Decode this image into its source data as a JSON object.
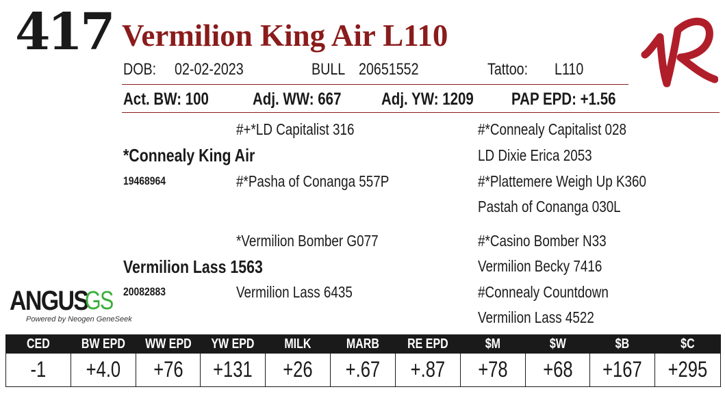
{
  "lot_number": "417",
  "animal_name": "Vermilion King Air L110",
  "details": {
    "dob_label": "DOB:",
    "dob_value": "02-02-2023",
    "sex": "BULL",
    "registration": "20651552",
    "tattoo_label": "Tattoo:",
    "tattoo_value": "L110"
  },
  "performance": {
    "act_bw": "Act. BW: 100",
    "adj_ww": "Adj. WW: 667",
    "adj_yw": "Adj. YW: 1209",
    "pap_epd": "PAP EPD: +1.56"
  },
  "pedigree": {
    "sire": {
      "name": "*Connealy King Air",
      "reg": "19468964"
    },
    "sire_sire": "#+*LD Capitalist 316",
    "sire_dam": "#*Pasha of Conanga 557P",
    "sire_sire_sire": "#*Connealy Capitalist 028",
    "sire_sire_dam": "LD Dixie Erica 2053",
    "sire_dam_sire": "#*Plattemere Weigh Up K360",
    "sire_dam_dam": "Pastah of Conanga 030L",
    "dam": {
      "name": "Vermilion Lass 1563",
      "reg": "20082883"
    },
    "dam_sire": "*Vermilion Bomber G077",
    "dam_dam": "Vermilion Lass 6435",
    "dam_sire_sire": "#*Casino Bomber N33",
    "dam_sire_dam": "Vermilion Becky 7416",
    "dam_dam_sire": "#Connealy Countdown",
    "dam_dam_dam": "Vermilion Lass 4522"
  },
  "angus_logo": {
    "word": "ANGUS",
    "suffix": "GS",
    "tagline": "Powered by Neogen GeneSeek",
    "suffix_color": "#3cae3c"
  },
  "brand_logo": {
    "icon": "vr-brand-icon",
    "color": "#b01e2a"
  },
  "accent_color": "#8a1c1c",
  "epd_table": {
    "headers": [
      "CED",
      "BW EPD",
      "WW EPD",
      "YW EPD",
      "MILK EPD",
      "MARB EPD",
      "RE EPD",
      "$M",
      "$W",
      "$B",
      "$C"
    ],
    "values": [
      "-1",
      "+4.0",
      "+76",
      "+131",
      "+26",
      "+.67",
      "+.87",
      "+78",
      "+68",
      "+167",
      "+295"
    ]
  }
}
